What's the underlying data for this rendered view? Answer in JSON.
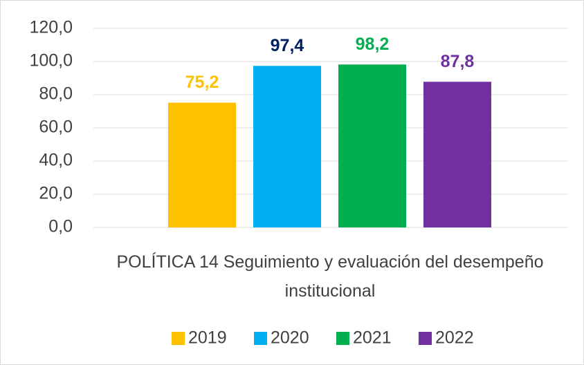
{
  "chart_data": {
    "type": "bar",
    "categories": [
      "POLÍTICA 14 Seguimiento y evaluación del desempeño institucional"
    ],
    "series": [
      {
        "name": "2019",
        "color": "#FFC000",
        "label_color": "#FFC000",
        "values": [
          75.2
        ],
        "value_labels": [
          "75,2"
        ]
      },
      {
        "name": "2020",
        "color": "#00B0F0",
        "label_color": "#002060",
        "values": [
          97.4
        ],
        "value_labels": [
          "97,4"
        ]
      },
      {
        "name": "2021",
        "color": "#00B050",
        "label_color": "#00B050",
        "values": [
          98.2
        ],
        "value_labels": [
          "98,2"
        ]
      },
      {
        "name": "2022",
        "color": "#7030A0",
        "label_color": "#7030A0",
        "values": [
          87.8
        ],
        "value_labels": [
          "87,8"
        ]
      }
    ],
    "ylim": [
      0,
      120
    ],
    "yticks": [
      {
        "value": 0,
        "label": "0,0"
      },
      {
        "value": 20,
        "label": "20,0"
      },
      {
        "value": 40,
        "label": "40,0"
      },
      {
        "value": 60,
        "label": "60,0"
      },
      {
        "value": 80,
        "label": "80,0"
      },
      {
        "value": 100,
        "label": "100,0"
      },
      {
        "value": 120,
        "label": "120,0"
      }
    ],
    "grid": true,
    "legend": "bottom"
  }
}
